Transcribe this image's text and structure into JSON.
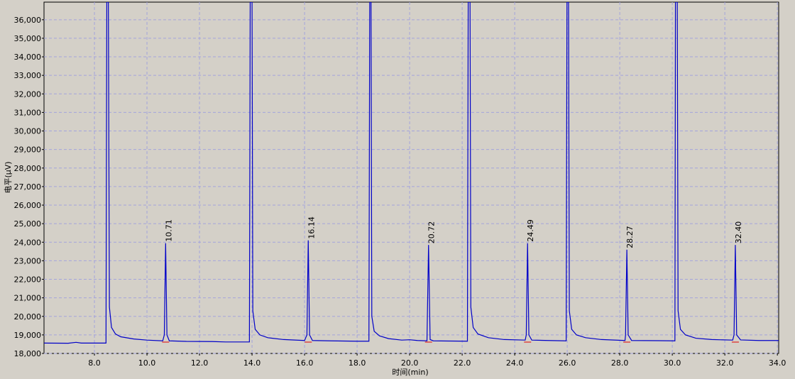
{
  "chart_data": {
    "type": "line",
    "x_label": "时间(min)",
    "y_label": "电平(μV)",
    "xlim": [
      6.08,
      34.05
    ],
    "ylim": [
      18000,
      36950
    ],
    "grid": true,
    "xticks": [
      {
        "value": 8,
        "label": "8.0"
      },
      {
        "value": 10,
        "label": "10.0"
      },
      {
        "value": 12,
        "label": "12.0"
      },
      {
        "value": 14,
        "label": "14.0"
      },
      {
        "value": 16,
        "label": "16.0"
      },
      {
        "value": 18,
        "label": "18.0"
      },
      {
        "value": 20,
        "label": "20.0"
      },
      {
        "value": 22,
        "label": "22.0"
      },
      {
        "value": 24,
        "label": "24.0"
      },
      {
        "value": 26,
        "label": "26.0"
      },
      {
        "value": 28,
        "label": "28.0"
      },
      {
        "value": 30,
        "label": "30.0"
      },
      {
        "value": 32,
        "label": "32.0"
      },
      {
        "value": 34,
        "label": "34.0"
      }
    ],
    "yticks": [
      {
        "value": 18000,
        "label": "18,000"
      },
      {
        "value": 19000,
        "label": "19,000"
      },
      {
        "value": 20000,
        "label": "20,000"
      },
      {
        "value": 21000,
        "label": "21,000"
      },
      {
        "value": 22000,
        "label": "22,000"
      },
      {
        "value": 23000,
        "label": "23,000"
      },
      {
        "value": 24000,
        "label": "24,000"
      },
      {
        "value": 25000,
        "label": "25,000"
      },
      {
        "value": 26000,
        "label": "26,000"
      },
      {
        "value": 27000,
        "label": "27,000"
      },
      {
        "value": 28000,
        "label": "28,000"
      },
      {
        "value": 29000,
        "label": "29,000"
      },
      {
        "value": 30000,
        "label": "30,000"
      },
      {
        "value": 31000,
        "label": "31,000"
      },
      {
        "value": 32000,
        "label": "32,000"
      },
      {
        "value": 33000,
        "label": "33,000"
      },
      {
        "value": 34000,
        "label": "34,000"
      },
      {
        "value": 35000,
        "label": "35,000"
      },
      {
        "value": 36000,
        "label": "36,000"
      }
    ],
    "series": [
      {
        "color": "#0000c8",
        "x": [
          6.08,
          7.0,
          7.3,
          7.5,
          8.0,
          8.44,
          8.47,
          8.53,
          8.57,
          8.65,
          8.8,
          9.0,
          9.5,
          10.0,
          10.6,
          10.66,
          10.71,
          10.76,
          10.85,
          11.5,
          12.5,
          13.0,
          13.9,
          13.93,
          14.0,
          14.03,
          14.12,
          14.3,
          14.6,
          15.2,
          16.0,
          16.09,
          16.14,
          16.19,
          16.3,
          17.0,
          18.0,
          18.45,
          18.48,
          18.53,
          18.56,
          18.65,
          18.85,
          19.2,
          19.7,
          20.0,
          20.3,
          20.66,
          20.72,
          20.78,
          20.9,
          21.5,
          22.2,
          22.23,
          22.3,
          22.33,
          22.42,
          22.6,
          23.0,
          23.6,
          24.4,
          24.44,
          24.49,
          24.54,
          24.65,
          25.3,
          25.96,
          25.99,
          26.05,
          26.08,
          26.17,
          26.35,
          26.7,
          27.3,
          28.2,
          28.22,
          28.27,
          28.32,
          28.45,
          29.5,
          30.1,
          30.12,
          30.19,
          30.22,
          30.31,
          30.5,
          30.9,
          31.5,
          32.3,
          32.35,
          32.4,
          32.45,
          32.6,
          33.3,
          34.05
        ],
        "values": [
          18560,
          18550,
          18600,
          18560,
          18560,
          18560,
          36950,
          36950,
          20500,
          19400,
          19050,
          18900,
          18780,
          18720,
          18680,
          19000,
          23950,
          19000,
          18680,
          18650,
          18640,
          18620,
          18620,
          36950,
          36950,
          20300,
          19300,
          19000,
          18850,
          18750,
          18700,
          19000,
          24100,
          19000,
          18700,
          18680,
          18660,
          18660,
          36950,
          36950,
          20000,
          19200,
          18950,
          18800,
          18720,
          18740,
          18700,
          18680,
          23850,
          18750,
          18680,
          18670,
          18660,
          36950,
          36950,
          20500,
          19400,
          19050,
          18850,
          18750,
          18720,
          19000,
          23950,
          19000,
          18720,
          18700,
          18680,
          36950,
          36950,
          20300,
          19300,
          19000,
          18850,
          18750,
          18700,
          19000,
          23600,
          19000,
          18700,
          18690,
          18680,
          36950,
          36950,
          20300,
          19300,
          19000,
          18820,
          18750,
          18720,
          19000,
          23850,
          19000,
          18730,
          18700,
          18700
        ]
      }
    ],
    "annotations": [
      {
        "x": 10.71,
        "y": 23950,
        "text": "10.71"
      },
      {
        "x": 16.14,
        "y": 24100,
        "text": "16.14"
      },
      {
        "x": 20.72,
        "y": 23850,
        "text": "20.72"
      },
      {
        "x": 24.49,
        "y": 23950,
        "text": "24.49"
      },
      {
        "x": 28.27,
        "y": 23600,
        "text": "28.27"
      },
      {
        "x": 32.4,
        "y": 23850,
        "text": "32.40"
      }
    ],
    "annotation_color": "#e07000"
  }
}
